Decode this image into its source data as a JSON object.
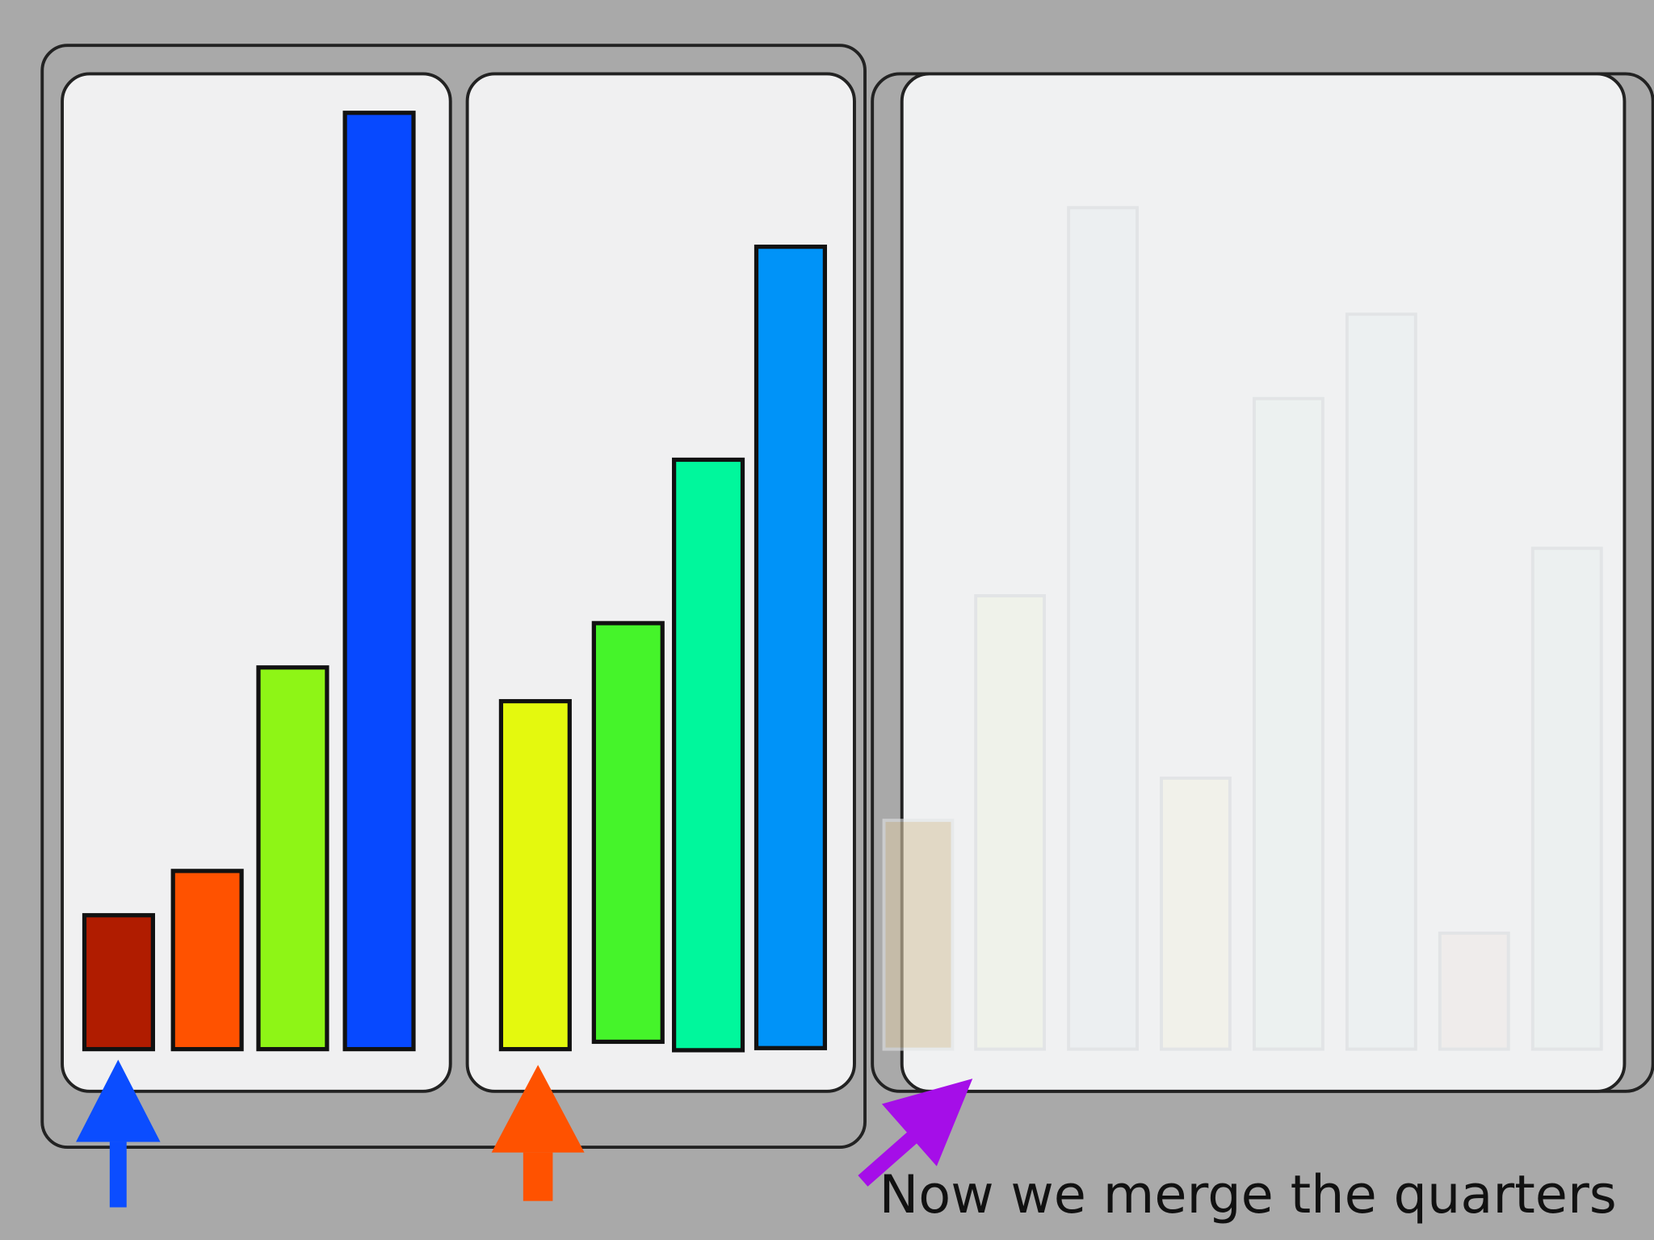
{
  "caption": "Now we merge the quarters"
}
